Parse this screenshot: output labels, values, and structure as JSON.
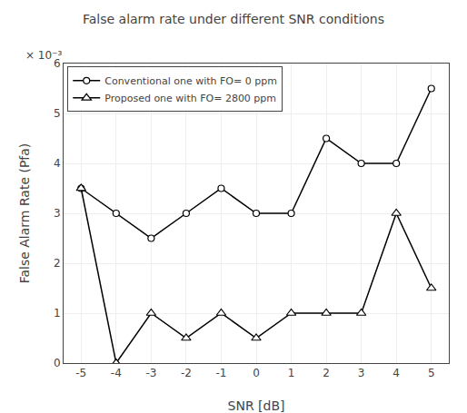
{
  "chart_data": {
    "type": "line",
    "title": "False alarm rate under different SNR conditions",
    "xlabel": "SNR [dB]",
    "ylabel": "False Alarm Rate (Pfa)",
    "x": [
      -5,
      -4,
      -3,
      -2,
      -1,
      0,
      1,
      2,
      3,
      4,
      5
    ],
    "series": [
      {
        "name": "Conventional one with FO= 0 ppm",
        "color": "#000000",
        "marker": "circle",
        "line_style": "solid",
        "values": [
          0.0035,
          0.003,
          0.0025,
          0.003,
          0.0035,
          0.003,
          0.003,
          0.0045,
          0.004,
          0.004,
          0.0055
        ]
      },
      {
        "name": "Proposed one with FO= 2800 ppm",
        "color": "#000000",
        "marker": "triangle-up",
        "line_style": "solid",
        "values": [
          0.0035,
          0.0,
          0.001,
          0.0005,
          0.001,
          0.0005,
          0.001,
          0.001,
          0.001,
          0.003,
          0.0015
        ]
      }
    ],
    "xlim": [
      -5.5,
      5.5
    ],
    "xticks": [
      -5,
      -4,
      -3,
      -2,
      -1,
      0,
      1,
      2,
      3,
      4,
      5
    ],
    "ylim": [
      0,
      0.006
    ],
    "yticks": [
      0,
      {
        "value": 0.001,
        "label": "1"
      },
      {
        "value": 0.002,
        "label": "2"
      },
      {
        "value": 0.003,
        "label": "3"
      },
      {
        "value": 0.004,
        "label": "4"
      },
      {
        "value": 0.005,
        "label": "5"
      },
      {
        "value": 0.006,
        "label": "6"
      }
    ],
    "annotations": [
      "× 10⁻³"
    ],
    "grid": true,
    "legend": "upper left"
  }
}
